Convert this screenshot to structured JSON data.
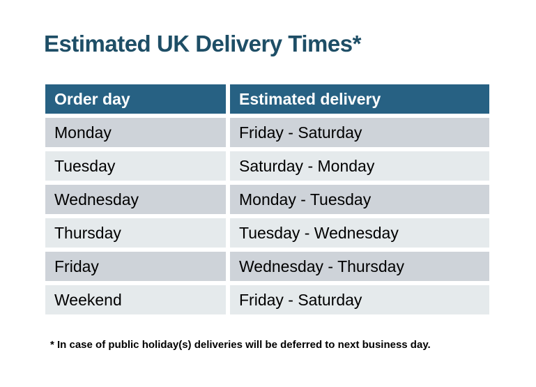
{
  "page": {
    "background": "#FFFFFF"
  },
  "title": {
    "text": "Estimated UK Delivery Times*",
    "color": "#1E4E66"
  },
  "table": {
    "header": {
      "columns": [
        "Order day",
        "Estimated delivery"
      ],
      "bg": "#276183",
      "text_color": "#FFFFFF"
    },
    "rows": [
      {
        "order_day": "Monday",
        "estimated_delivery": "Friday - Saturday"
      },
      {
        "order_day": "Tuesday",
        "estimated_delivery": "Saturday - Monday"
      },
      {
        "order_day": "Wednesday",
        "estimated_delivery": "Monday - Tuesday"
      },
      {
        "order_day": "Thursday",
        "estimated_delivery": "Tuesday - Wednesday"
      },
      {
        "order_day": "Friday",
        "estimated_delivery": "Wednesday - Thursday"
      },
      {
        "order_day": "Weekend",
        "estimated_delivery": "Friday - Saturday"
      }
    ],
    "row_colors": {
      "odd": "#CED3D9",
      "even": "#E5EAEC"
    }
  },
  "footnote": {
    "text": "* In case of public holiday(s) deliveries will be deferred to next business day."
  }
}
